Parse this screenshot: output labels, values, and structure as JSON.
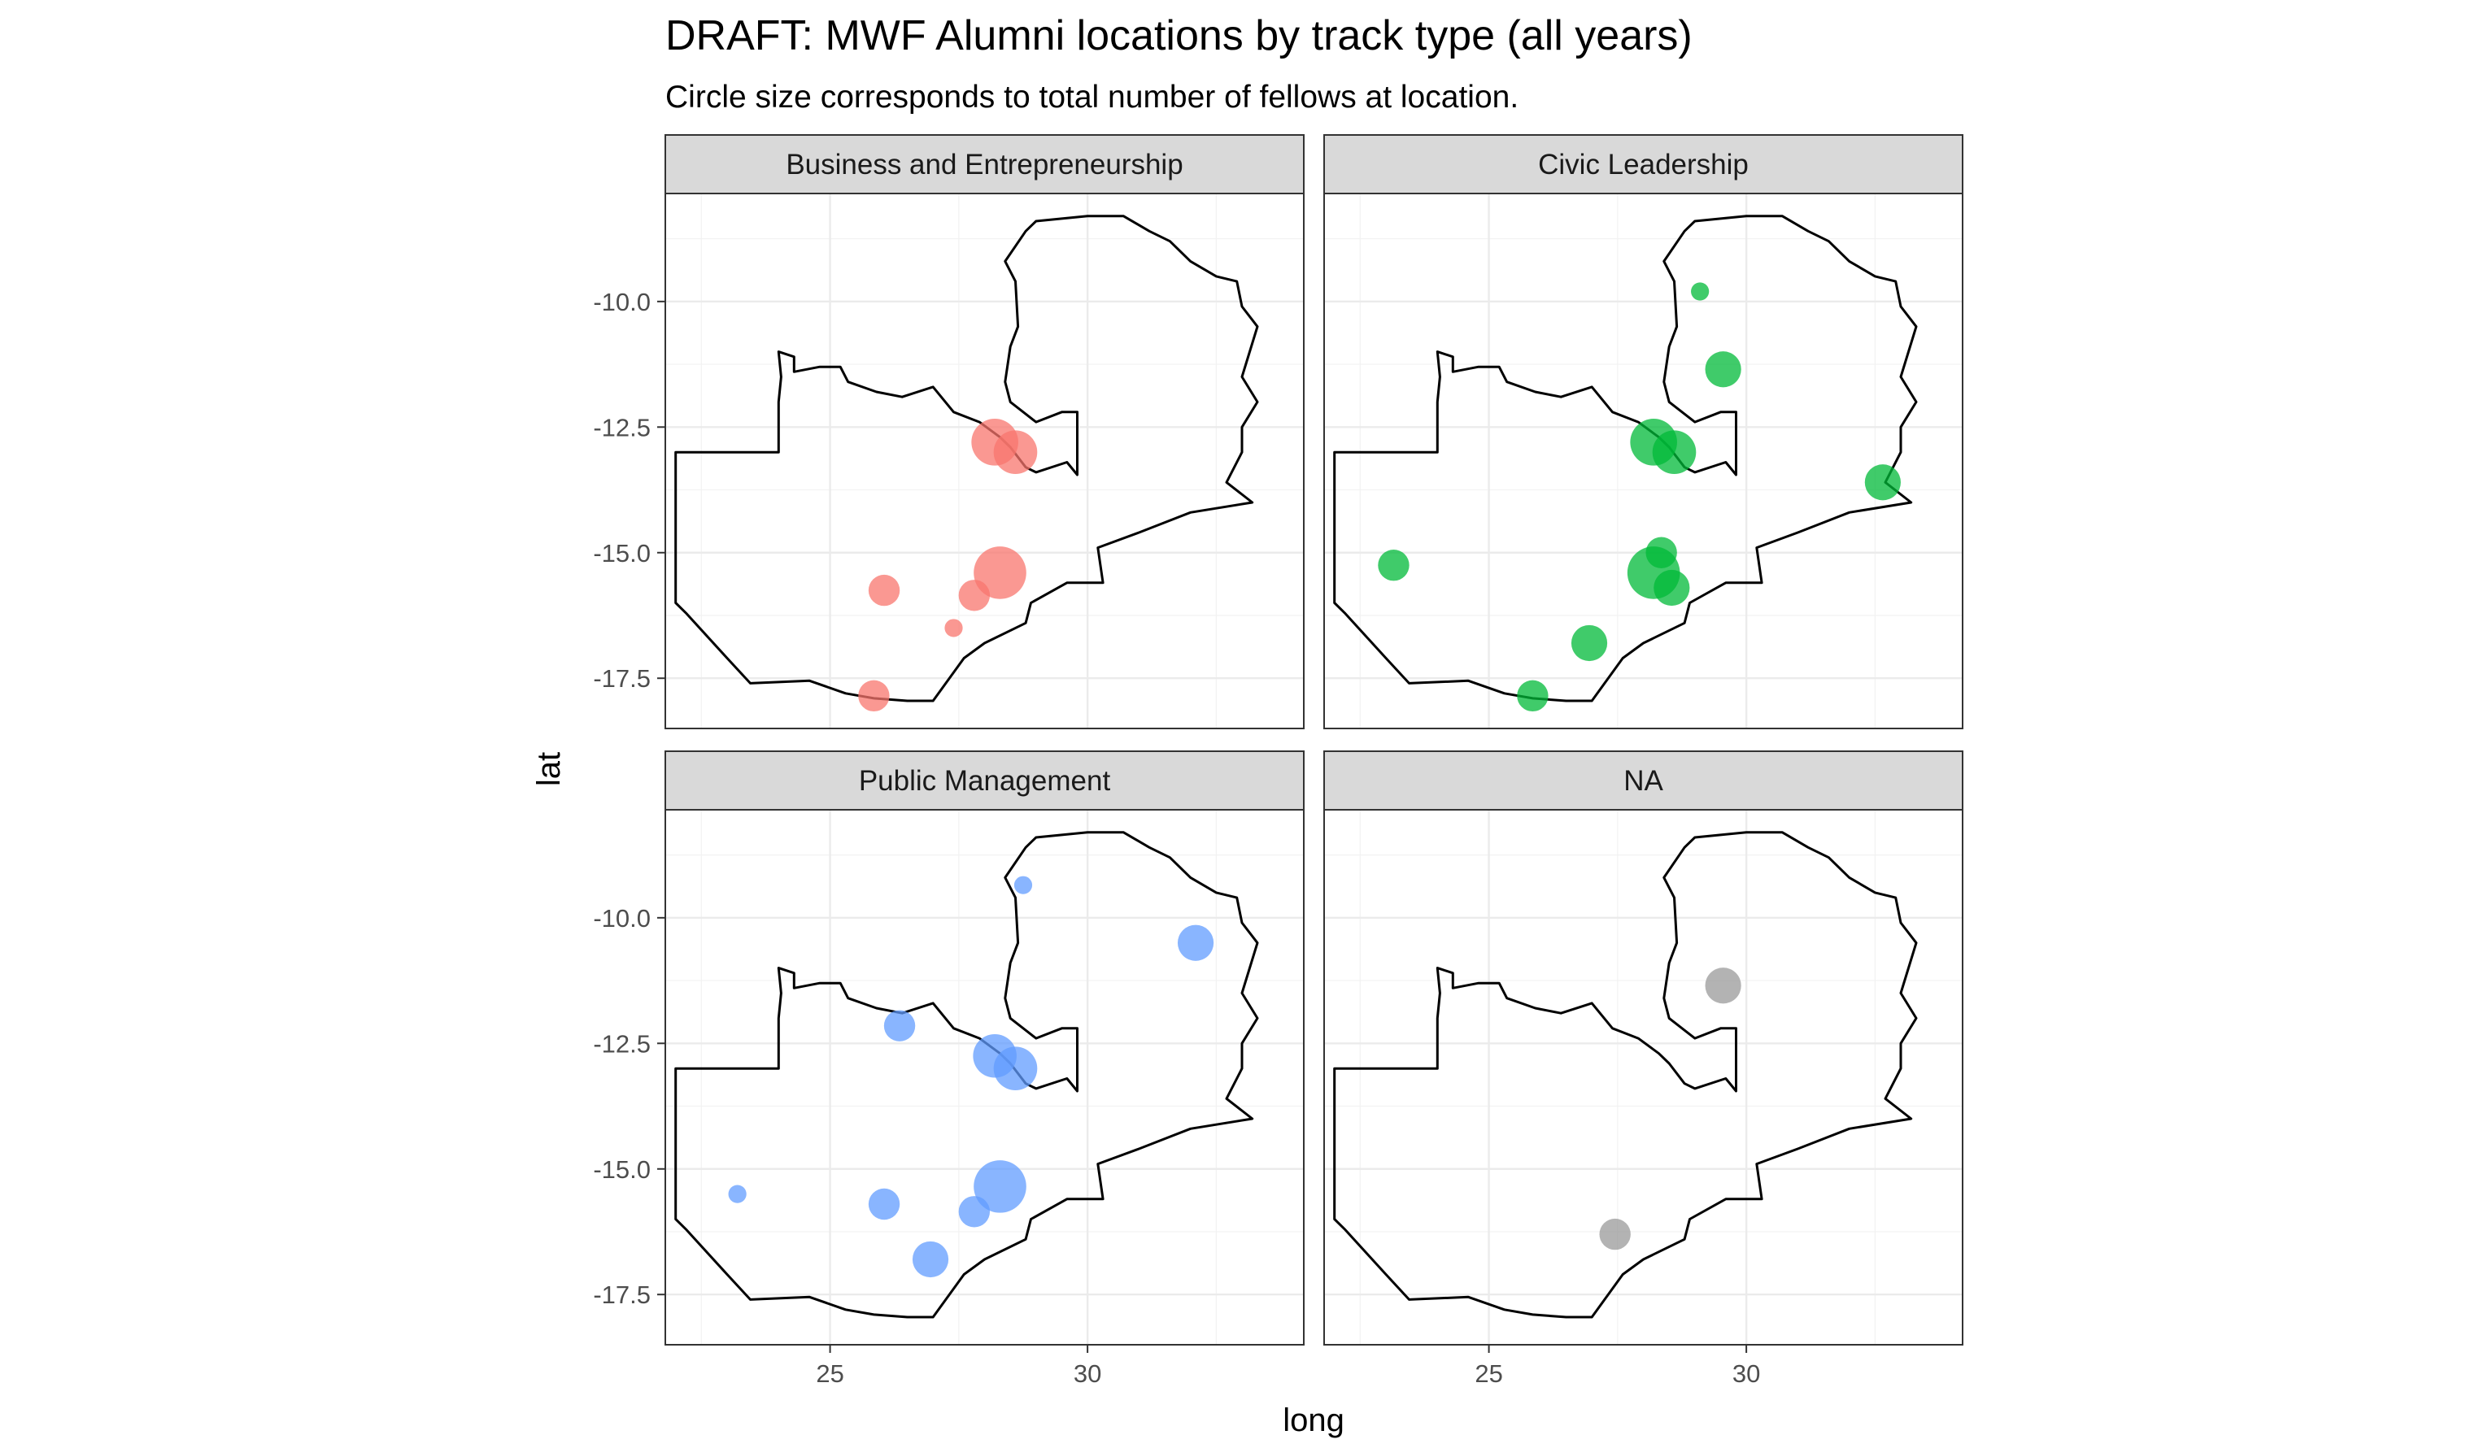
{
  "title": "DRAFT: MWF Alumni locations by track type (all years)",
  "subtitle": "Circle size corresponds to total number of fellows at location.",
  "chart_data": {
    "type": "scatter",
    "xlabel": "long",
    "ylabel": "lat",
    "xlim": [
      21.8,
      34.2
    ],
    "ylim": [
      -18.5,
      -7.85
    ],
    "x_ticks": [
      25,
      30
    ],
    "x_tick_labels": [
      "25",
      "30"
    ],
    "y_ticks": [
      -10.0,
      -12.5,
      -15.0,
      -17.5
    ],
    "y_tick_labels": [
      "-10.0",
      "-12.5",
      "-15.0",
      "-17.5"
    ],
    "grid": true,
    "legend": "none",
    "layout": "facet 2x2",
    "facets": [
      {
        "name": "Business and Entrepreneurship",
        "color": "#F8766D",
        "points": [
          {
            "long": 28.2,
            "lat": -12.8,
            "n": 6
          },
          {
            "long": 28.6,
            "lat": -13.0,
            "n": 5
          },
          {
            "long": 28.3,
            "lat": -15.4,
            "n": 8
          },
          {
            "long": 27.8,
            "lat": -15.85,
            "n": 2
          },
          {
            "long": 26.05,
            "lat": -15.75,
            "n": 2
          },
          {
            "long": 27.4,
            "lat": -16.5,
            "n": 0.3
          },
          {
            "long": 25.85,
            "lat": -17.85,
            "n": 2
          }
        ]
      },
      {
        "name": "Civic Leadership",
        "color": "#00BA38",
        "points": [
          {
            "long": 29.1,
            "lat": -9.8,
            "n": 0.3
          },
          {
            "long": 29.55,
            "lat": -11.35,
            "n": 3
          },
          {
            "long": 28.2,
            "lat": -12.8,
            "n": 6
          },
          {
            "long": 28.6,
            "lat": -13.0,
            "n": 5
          },
          {
            "long": 32.65,
            "lat": -13.6,
            "n": 3
          },
          {
            "long": 28.35,
            "lat": -15.0,
            "n": 2
          },
          {
            "long": 28.55,
            "lat": -15.7,
            "n": 3
          },
          {
            "long": 28.2,
            "lat": -15.4,
            "n": 8
          },
          {
            "long": 23.15,
            "lat": -15.25,
            "n": 2
          },
          {
            "long": 26.95,
            "lat": -16.8,
            "n": 3
          },
          {
            "long": 25.85,
            "lat": -17.85,
            "n": 2
          }
        ]
      },
      {
        "name": "Public Management",
        "color": "#619CFF",
        "points": [
          {
            "long": 28.75,
            "lat": -9.35,
            "n": 0.3
          },
          {
            "long": 32.1,
            "lat": -10.5,
            "n": 3
          },
          {
            "long": 26.35,
            "lat": -12.15,
            "n": 2
          },
          {
            "long": 28.2,
            "lat": -12.75,
            "n": 5
          },
          {
            "long": 28.6,
            "lat": -13.0,
            "n": 5
          },
          {
            "long": 28.3,
            "lat": -15.35,
            "n": 8
          },
          {
            "long": 27.8,
            "lat": -15.85,
            "n": 2
          },
          {
            "long": 26.05,
            "lat": -15.7,
            "n": 2
          },
          {
            "long": 26.95,
            "lat": -16.8,
            "n": 3
          },
          {
            "long": 23.2,
            "lat": -15.5,
            "n": 0.3
          }
        ]
      },
      {
        "name": "NA",
        "color": "#999999",
        "points": [
          {
            "long": 29.55,
            "lat": -11.35,
            "n": 3
          },
          {
            "long": 27.45,
            "lat": -16.3,
            "n": 2
          }
        ]
      }
    ],
    "boundary": {
      "name": "zambia-outline",
      "coords": [
        [
          22.0,
          -13.0
        ],
        [
          23.0,
          -13.0
        ],
        [
          24.0,
          -13.0
        ],
        [
          24.0,
          -12.0
        ],
        [
          24.05,
          -11.5
        ],
        [
          24.0,
          -11.0
        ],
        [
          24.3,
          -11.1
        ],
        [
          24.3,
          -11.4
        ],
        [
          24.8,
          -11.3
        ],
        [
          25.2,
          -11.3
        ],
        [
          25.35,
          -11.6
        ],
        [
          25.9,
          -11.8
        ],
        [
          26.4,
          -11.9
        ],
        [
          27.0,
          -11.7
        ],
        [
          27.4,
          -12.2
        ],
        [
          27.9,
          -12.4
        ],
        [
          28.3,
          -12.7
        ],
        [
          28.5,
          -12.9
        ],
        [
          28.8,
          -13.3
        ],
        [
          29.0,
          -13.4
        ],
        [
          29.6,
          -13.2
        ],
        [
          29.8,
          -13.45
        ],
        [
          29.8,
          -12.2
        ],
        [
          29.5,
          -12.2
        ],
        [
          29.0,
          -12.4
        ],
        [
          28.5,
          -12.0
        ],
        [
          28.4,
          -11.6
        ],
        [
          28.5,
          -10.9
        ],
        [
          28.65,
          -10.5
        ],
        [
          28.6,
          -9.6
        ],
        [
          28.4,
          -9.2
        ],
        [
          28.8,
          -8.6
        ],
        [
          29.0,
          -8.4
        ],
        [
          30.0,
          -8.3
        ],
        [
          30.7,
          -8.3
        ],
        [
          31.2,
          -8.6
        ],
        [
          31.6,
          -8.8
        ],
        [
          32.0,
          -9.2
        ],
        [
          32.5,
          -9.5
        ],
        [
          32.9,
          -9.6
        ],
        [
          33.0,
          -10.1
        ],
        [
          33.3,
          -10.5
        ],
        [
          33.0,
          -11.5
        ],
        [
          33.3,
          -12.0
        ],
        [
          33.0,
          -12.5
        ],
        [
          33.0,
          -13.0
        ],
        [
          32.7,
          -13.6
        ],
        [
          33.2,
          -14.0
        ],
        [
          32.0,
          -14.2
        ],
        [
          31.0,
          -14.6
        ],
        [
          30.2,
          -14.9
        ],
        [
          30.3,
          -15.6
        ],
        [
          29.6,
          -15.6
        ],
        [
          28.9,
          -16.0
        ],
        [
          28.8,
          -16.4
        ],
        [
          28.0,
          -16.8
        ],
        [
          27.6,
          -17.1
        ],
        [
          27.0,
          -17.95
        ],
        [
          26.5,
          -17.95
        ],
        [
          25.85,
          -17.9
        ],
        [
          25.3,
          -17.8
        ],
        [
          24.6,
          -17.55
        ],
        [
          23.45,
          -17.6
        ],
        [
          23.0,
          -17.1
        ],
        [
          22.2,
          -16.2
        ],
        [
          22.0,
          -16.0
        ],
        [
          22.0,
          -13.0
        ]
      ]
    }
  }
}
